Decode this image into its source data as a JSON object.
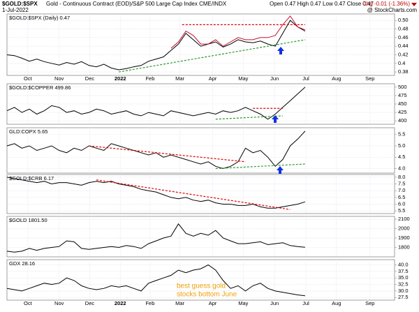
{
  "header": {
    "symbol": "$GOLD:$SPX",
    "description": "Gold - Continuous Contract (EOD)/S&P 500 Large Cap Index CME/INDX",
    "date": "1-Jul-2022",
    "quote": "Open 0.47  High 0.47  Low 0.47  Close 0.47",
    "change": "Chg -0.01 (-1.36%)",
    "credit": "@ StockCharts.com"
  },
  "chart_data": [
    {
      "type": "line",
      "title": "$GOLD:$SPX (Daily) 0.47",
      "xlim": [
        0,
        52
      ],
      "ylim": [
        0.372,
        0.515
      ],
      "yticks": [
        0.38,
        0.4,
        0.42,
        0.44,
        0.46,
        0.48,
        {
          "value": 0.5,
          "label": "0.50"
        }
      ],
      "xticks": [
        {
          "value": 2.8,
          "label": "Oct"
        },
        {
          "value": 7.0,
          "label": "Nov"
        },
        {
          "value": 11.1,
          "label": "Dec"
        },
        {
          "value": 15.2,
          "label": "2022"
        },
        {
          "value": 19.2,
          "label": "Feb"
        },
        {
          "value": 23.2,
          "label": "Mar"
        },
        {
          "value": 27.6,
          "label": "Apr"
        },
        {
          "value": 31.7,
          "label": "May"
        },
        {
          "value": 35.9,
          "label": "Jun"
        },
        {
          "value": 40.1,
          "label": "Jul"
        },
        {
          "value": 44.2,
          "label": "Aug"
        },
        {
          "value": 48.7,
          "label": "Sep"
        }
      ],
      "x": [
        0,
        1,
        2,
        3,
        4,
        5,
        6,
        7,
        8,
        9,
        10,
        11,
        12,
        13,
        14,
        15,
        16,
        17,
        18,
        19,
        20,
        21,
        22,
        23,
        24,
        25,
        26,
        27,
        28,
        29,
        30,
        31,
        32,
        33,
        34,
        35,
        36,
        37,
        38,
        39,
        40
      ],
      "series": [
        {
          "color": "#000000",
          "values": [
            0.42,
            0.418,
            0.412,
            0.405,
            0.41,
            0.404,
            0.4,
            0.396,
            0.402,
            0.398,
            0.404,
            0.395,
            0.392,
            0.398,
            0.389,
            0.385,
            0.388,
            0.392,
            0.395,
            0.405,
            0.41,
            0.415,
            0.43,
            0.445,
            0.47,
            0.455,
            0.44,
            0.445,
            0.45,
            0.438,
            0.445,
            0.455,
            0.45,
            0.448,
            0.452,
            0.445,
            0.44,
            0.47,
            0.5,
            0.485,
            0.475
          ]
        },
        {
          "color": "#c8102e",
          "values": [
            null,
            null,
            null,
            null,
            null,
            null,
            null,
            null,
            null,
            null,
            null,
            null,
            null,
            null,
            null,
            null,
            null,
            null,
            null,
            null,
            null,
            null,
            0.435,
            0.45,
            0.475,
            0.465,
            0.445,
            0.445,
            0.455,
            0.44,
            0.45,
            0.46,
            0.455,
            0.455,
            0.46,
            0.46,
            0.465,
            0.49,
            0.51,
            0.485,
            0.478
          ]
        }
      ],
      "trendlines": [
        {
          "color": "#e00000",
          "x": [
            23.5,
            40
          ],
          "values": [
            0.49,
            0.49
          ]
        },
        {
          "color": "#2a9a2a",
          "x": [
            15,
            40
          ],
          "values": [
            0.38,
            0.455
          ]
        }
      ]
    },
    {
      "type": "line",
      "title": "$GOLD:$COPPER 499.86",
      "xlim": [
        0,
        52
      ],
      "ylim": [
        390,
        510
      ],
      "yticks": [
        400,
        425,
        450,
        475,
        500
      ],
      "xticks": [
        2.8,
        7.0,
        11.1,
        15.2,
        19.2,
        23.2,
        27.6,
        31.7,
        35.9,
        40.1,
        44.2,
        48.7
      ],
      "x": [
        0,
        1,
        2,
        3,
        4,
        5,
        6,
        7,
        8,
        9,
        10,
        11,
        12,
        13,
        14,
        15,
        16,
        17,
        18,
        19,
        20,
        21,
        22,
        23,
        24,
        25,
        26,
        27,
        28,
        29,
        30,
        31,
        32,
        33,
        34,
        35,
        36,
        37,
        38,
        39,
        40
      ],
      "series": [
        {
          "color": "#000000",
          "values": [
            430,
            440,
            425,
            435,
            420,
            430,
            445,
            440,
            425,
            430,
            420,
            425,
            435,
            430,
            420,
            425,
            430,
            420,
            415,
            425,
            420,
            415,
            430,
            425,
            420,
            415,
            420,
            425,
            420,
            430,
            425,
            430,
            440,
            430,
            420,
            405,
            420,
            440,
            460,
            480,
            499.86
          ]
        }
      ],
      "trendlines": [
        {
          "color": "#e00000",
          "x": [
            33,
            37
          ],
          "values": [
            437,
            437
          ]
        },
        {
          "color": "#2a9a2a",
          "x": [
            28,
            37
          ],
          "values": [
            405,
            415
          ]
        }
      ]
    },
    {
      "type": "line",
      "title": "GLD:COPX 5.65",
      "xlim": [
        0,
        52
      ],
      "ylim": [
        3.8,
        5.8
      ],
      "yticks": [
        {
          "value": 4,
          "label": "4.0"
        },
        4.5,
        {
          "value": 5,
          "label": "5.0"
        },
        5.5
      ],
      "xticks": [
        2.8,
        7.0,
        11.1,
        15.2,
        19.2,
        23.2,
        27.6,
        31.7,
        35.9,
        40.1,
        44.2,
        48.7
      ],
      "x": [
        0,
        1,
        2,
        3,
        4,
        5,
        6,
        7,
        8,
        9,
        10,
        11,
        12,
        13,
        14,
        15,
        16,
        17,
        18,
        19,
        20,
        21,
        22,
        23,
        24,
        25,
        26,
        27,
        28,
        29,
        30,
        31,
        32,
        33,
        34,
        35,
        36,
        37,
        38,
        39,
        40
      ],
      "series": [
        {
          "color": "#000000",
          "values": [
            5.0,
            5.1,
            4.9,
            5.0,
            4.8,
            4.9,
            5.0,
            4.8,
            4.7,
            4.9,
            4.8,
            5.0,
            4.9,
            4.8,
            5.1,
            5.0,
            4.9,
            4.8,
            4.7,
            4.6,
            4.7,
            4.5,
            4.6,
            4.5,
            4.4,
            4.3,
            4.2,
            4.3,
            4.1,
            4.0,
            4.1,
            4.3,
            4.9,
            4.7,
            4.8,
            4.5,
            4.1,
            4.4,
            5.0,
            5.3,
            5.65
          ]
        }
      ],
      "trendlines": [
        {
          "color": "#e00000",
          "x": [
            11,
            32
          ],
          "values": [
            5.0,
            4.3
          ]
        },
        {
          "color": "#2a9a2a",
          "x": [
            28,
            40
          ],
          "values": [
            4.0,
            4.2
          ]
        }
      ]
    },
    {
      "type": "line",
      "title": "$GOLD:$CRB 6.17",
      "xlim": [
        0,
        52
      ],
      "ylim": [
        5.3,
        8.2
      ],
      "yticks": [
        5.5,
        {
          "value": 6,
          "label": "6.0"
        },
        6.5,
        {
          "value": 7,
          "label": "7.0"
        },
        7.5,
        {
          "value": 8,
          "label": "8.0"
        }
      ],
      "xticks": [
        2.8,
        7.0,
        11.1,
        15.2,
        19.2,
        23.2,
        27.6,
        31.7,
        35.9,
        40.1,
        44.2,
        48.7
      ],
      "x": [
        0,
        1,
        2,
        3,
        4,
        5,
        6,
        7,
        8,
        9,
        10,
        11,
        12,
        13,
        14,
        15,
        16,
        17,
        18,
        19,
        20,
        21,
        22,
        23,
        24,
        25,
        26,
        27,
        28,
        29,
        30,
        31,
        32,
        33,
        34,
        35,
        36,
        37,
        38,
        39,
        40
      ],
      "series": [
        {
          "color": "#000000",
          "values": [
            8.0,
            7.9,
            7.8,
            7.7,
            7.6,
            7.7,
            7.5,
            7.6,
            7.6,
            7.5,
            7.4,
            7.6,
            7.7,
            7.6,
            7.7,
            7.5,
            7.4,
            7.3,
            7.1,
            7.0,
            6.9,
            6.7,
            6.5,
            6.4,
            6.5,
            6.3,
            6.2,
            6.3,
            6.1,
            6.0,
            6.0,
            5.9,
            5.9,
            6.0,
            5.8,
            5.7,
            5.7,
            5.8,
            5.9,
            6.0,
            6.17
          ]
        }
      ],
      "trendlines": [
        {
          "color": "#e00000",
          "x": [
            12,
            38
          ],
          "values": [
            7.8,
            5.6
          ]
        }
      ]
    },
    {
      "type": "line",
      "title": "$GOLD 1801.50",
      "xlim": [
        0,
        52
      ],
      "ylim": [
        1700,
        2130
      ],
      "yticks": [
        1800,
        1900,
        2000,
        2100
      ],
      "xticks": [
        2.8,
        7.0,
        11.1,
        15.2,
        19.2,
        23.2,
        27.6,
        31.7,
        35.9,
        40.1,
        44.2,
        48.7
      ],
      "x": [
        0,
        1,
        2,
        3,
        4,
        5,
        6,
        7,
        8,
        9,
        10,
        11,
        12,
        13,
        14,
        15,
        16,
        17,
        18,
        19,
        20,
        21,
        22,
        23,
        24,
        25,
        26,
        27,
        28,
        29,
        30,
        31,
        32,
        33,
        34,
        35,
        36,
        37,
        38,
        39,
        40
      ],
      "series": [
        {
          "color": "#000000",
          "values": [
            1760,
            1750,
            1760,
            1790,
            1770,
            1790,
            1800,
            1810,
            1870,
            1860,
            1790,
            1780,
            1790,
            1800,
            1810,
            1800,
            1820,
            1810,
            1790,
            1840,
            1870,
            1900,
            1920,
            2050,
            1950,
            1920,
            1950,
            1930,
            1980,
            1900,
            1870,
            1840,
            1840,
            1850,
            1860,
            1830,
            1840,
            1850,
            1820,
            1810,
            1801.5
          ]
        }
      ]
    },
    {
      "type": "line",
      "title": "GDX 28.16",
      "xlim": [
        0,
        52
      ],
      "ylim": [
        26.5,
        42
      ],
      "yticks": [
        27.5,
        {
          "value": 30,
          "label": "30.0"
        },
        32.5,
        {
          "value": 35,
          "label": "35.0"
        },
        37.5,
        {
          "value": 40,
          "label": "40.0"
        }
      ],
      "xticks": [
        {
          "value": 2.8,
          "label": "Oct"
        },
        {
          "value": 7.0,
          "label": "Nov"
        },
        {
          "value": 11.1,
          "label": "Dec"
        },
        {
          "value": 15.2,
          "label": "2022"
        },
        {
          "value": 19.2,
          "label": "Feb"
        },
        {
          "value": 23.2,
          "label": "Mar"
        },
        {
          "value": 27.6,
          "label": "Apr"
        },
        {
          "value": 31.7,
          "label": "May"
        },
        {
          "value": 35.9,
          "label": "Jun"
        },
        {
          "value": 40.1,
          "label": "Jul"
        },
        {
          "value": 44.2,
          "label": "Aug"
        },
        {
          "value": 48.7,
          "label": "Sep"
        }
      ],
      "x": [
        0,
        1,
        2,
        3,
        4,
        5,
        6,
        7,
        8,
        9,
        10,
        11,
        12,
        13,
        14,
        15,
        16,
        17,
        18,
        19,
        20,
        21,
        22,
        23,
        24,
        25,
        26,
        27,
        28,
        29,
        30,
        31,
        32,
        33,
        34,
        35,
        36,
        37,
        38,
        39,
        40
      ],
      "series": [
        {
          "color": "#000000",
          "values": [
            31,
            30.5,
            30,
            31,
            32,
            33,
            32.5,
            33,
            35,
            34,
            32,
            31,
            30.5,
            31,
            32,
            31.5,
            32,
            31,
            30,
            33,
            34,
            35,
            36,
            38,
            37,
            38,
            38.5,
            40,
            38,
            34,
            31,
            32,
            30,
            32,
            33,
            31,
            30,
            29.5,
            29,
            28.5,
            28.16
          ]
        }
      ],
      "annotations": [
        "best guess gold",
        "stocks bottom June"
      ]
    }
  ]
}
